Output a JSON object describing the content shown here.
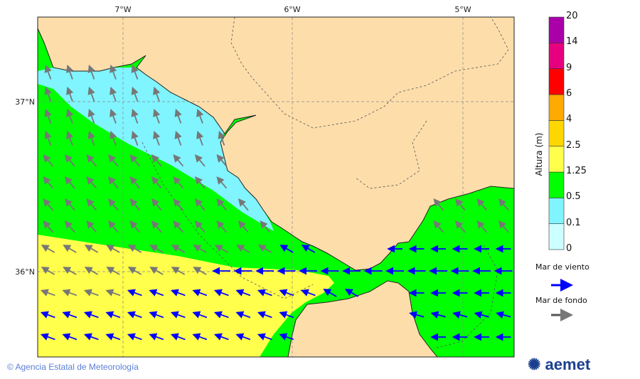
{
  "map": {
    "lon_labels": [
      "7°W",
      "6°W",
      "5°W"
    ],
    "lat_labels": [
      "37°N",
      "36°N"
    ],
    "colors": {
      "land": "#fddeab",
      "sea_green": "#00ff00",
      "sea_cyan": "#80f4ff",
      "sea_yellow": "#ffff4c",
      "wind_sea_arrow": "#0000ff",
      "swell_arrow": "#666666"
    }
  },
  "colorbar": {
    "title": "Altura (m)",
    "ticks": [
      "0",
      "0.1",
      "0.5",
      "1.25",
      "2.5",
      "4",
      "6",
      "9",
      "14",
      "20"
    ],
    "colors": [
      "#ccffff",
      "#80f4ff",
      "#00ff00",
      "#ffff4c",
      "#ffd700",
      "#ffaa00",
      "#ff0000",
      "#e6007f",
      "#aa00aa"
    ]
  },
  "legend": {
    "wind_sea": "Mar de viento",
    "swell": "Mar de fondo"
  },
  "footer": {
    "copyright": "Agencia Estatal de Meteorología",
    "logo": "aemet"
  }
}
